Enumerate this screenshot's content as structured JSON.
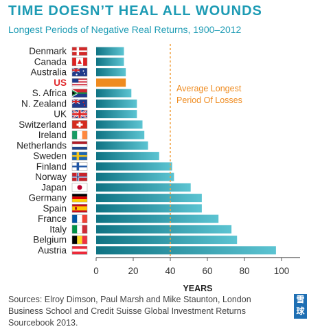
{
  "title": "TIME DOESN’T HEAL ALL WOUNDS",
  "subtitle": "Longest Periods of Negative Real Returns, 1900–2012",
  "source": "Sources: Elroy Dimson, Paul Marsh and Mike Staunton, London Business School and Credit Suisse Global Investment Returns Sourcebook 2013.",
  "watermark": "雪球",
  "colors": {
    "title": "#1d9bb4",
    "bar_dark": "#0f7383",
    "bar_light": "#5cc4d2",
    "highlight": "#ef8b1f",
    "highlight_label": "#e0282a",
    "average_line": "#f0a040",
    "axis": "#555555"
  },
  "chart_data": {
    "type": "bar",
    "orientation": "horizontal",
    "categories": [
      "Denmark",
      "Canada",
      "Australia",
      "US",
      "S. Africa",
      "N. Zealand",
      "UK",
      "Switzerland",
      "Ireland",
      "Netherlands",
      "Sweden",
      "Finland",
      "Norway",
      "Japan",
      "Germany",
      "Spain",
      "France",
      "Italy",
      "Belgium",
      "Austria"
    ],
    "values": [
      15,
      15,
      16,
      16,
      19,
      22,
      22,
      25,
      26,
      28,
      34,
      41,
      42,
      51,
      57,
      57,
      66,
      73,
      76,
      97
    ],
    "highlight": "US",
    "xlabel": "YEARS",
    "xlim": [
      0,
      100
    ],
    "xticks": [
      "0",
      "20",
      "40",
      "60",
      "80",
      "100"
    ],
    "reference_line": {
      "value": 40,
      "label_lines": [
        "Average Longest",
        "Period Of Losses"
      ]
    },
    "grid": false,
    "flags": [
      "denmark-flag-icon",
      "canada-flag-icon",
      "australia-flag-icon",
      "us-flag-icon",
      "south-africa-flag-icon",
      "new-zealand-flag-icon",
      "uk-flag-icon",
      "switzerland-flag-icon",
      "ireland-flag-icon",
      "netherlands-flag-icon",
      "sweden-flag-icon",
      "finland-flag-icon",
      "norway-flag-icon",
      "japan-flag-icon",
      "germany-flag-icon",
      "spain-flag-icon",
      "france-flag-icon",
      "italy-flag-icon",
      "belgium-flag-icon",
      "austria-flag-icon"
    ]
  }
}
